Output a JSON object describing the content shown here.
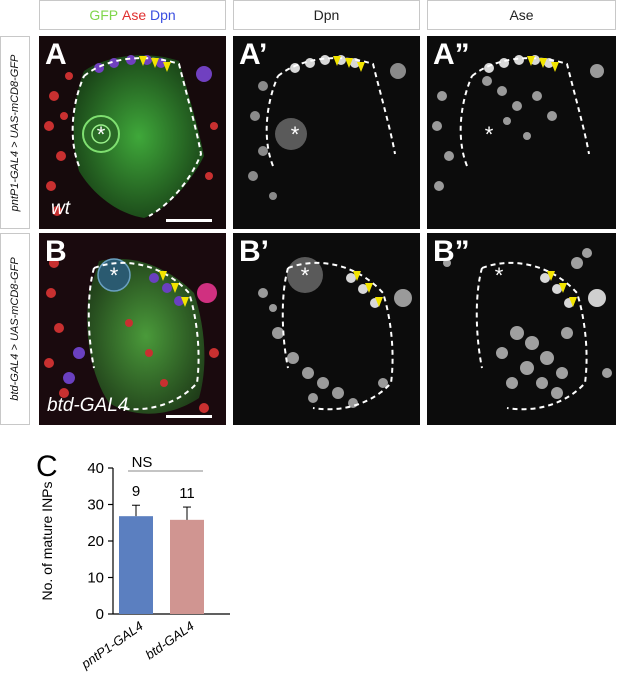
{
  "headers": {
    "merge_green": "GFP",
    "merge_red": "Ase",
    "merge_blue": "Dpn",
    "dpn": "Dpn",
    "ase": "Ase"
  },
  "rows": [
    {
      "genotype": "pntP1-GAL4 > UAS-mCD8-GFP",
      "labels": [
        "A",
        "A’",
        "A”"
      ],
      "image_text": "wt"
    },
    {
      "genotype": "btd-GAL4 > UAS-mCD8-GFP",
      "labels": [
        "B",
        "B’",
        "B”"
      ],
      "image_text": "btd-GAL4"
    }
  ],
  "asterisk": "*",
  "panel_c": {
    "label": "C",
    "chart_data": {
      "type": "bar",
      "categories": [
        "pntP1-GAL4",
        "btd-GAL4"
      ],
      "values": [
        26.8,
        25.8
      ],
      "errors": [
        3.0,
        3.5
      ],
      "n_labels": [
        "9",
        "11"
      ],
      "significance": "NS",
      "ylabel": "No. of mature INPs",
      "ylim": [
        0,
        40
      ],
      "yticks": [
        0,
        10,
        20,
        30,
        40
      ],
      "colors": [
        "#5b7fc0",
        "#d09591"
      ]
    }
  }
}
